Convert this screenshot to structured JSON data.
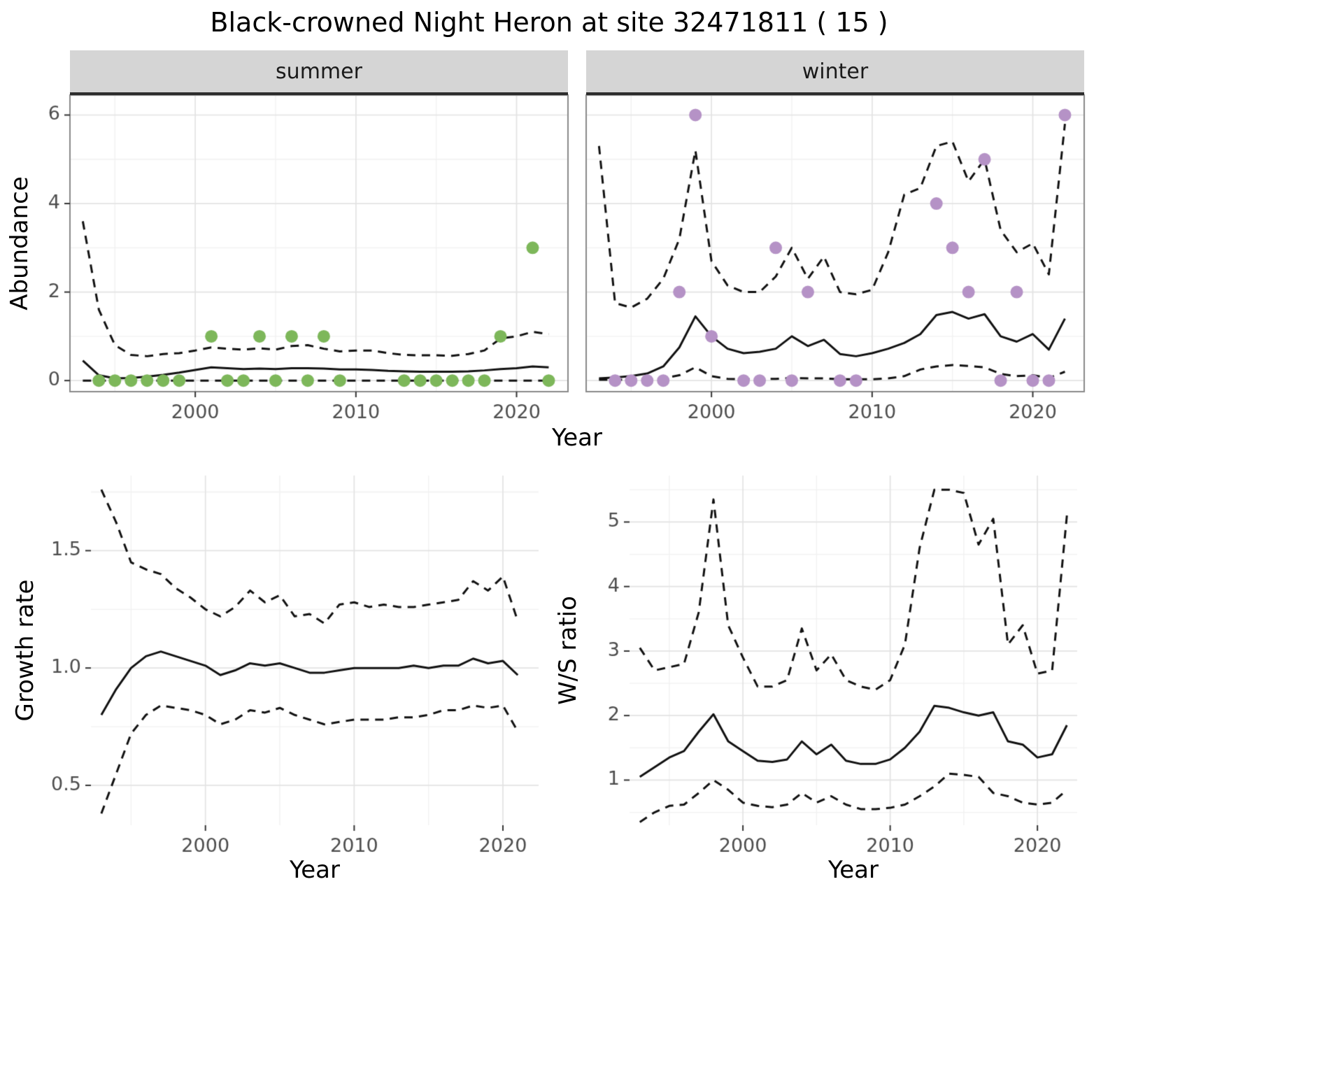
{
  "title": "Black-crowned Night Heron at site 32471811 ( 15 )",
  "colors": {
    "line": "#111111",
    "grid_major": "#e3e3e3",
    "grid_minor": "#f1f1f1",
    "strip_bg": "#d5d5d5",
    "strip_border": "#2d2d2d",
    "panel_border": "#8a8a8a",
    "tick_text": "#4d4d4d",
    "summer_point": "#7db75a",
    "winter_point": "#b592c6"
  },
  "chart_data": [
    {
      "id": "abundance-summer",
      "type": "line",
      "facet": "summer",
      "xlabel": "Year",
      "ylabel": "Abundance",
      "xlim": [
        1992.2,
        2023.2
      ],
      "ylim": [
        -0.25,
        6.45
      ],
      "xticks": {
        "values": [
          2000,
          2010,
          2020
        ],
        "labels": [
          "2000",
          "2010",
          "2020"
        ]
      },
      "yticks": {
        "values": [
          0,
          2,
          4,
          6
        ],
        "labels": [
          "0",
          "2",
          "4",
          "6"
        ]
      },
      "x": [
        1993,
        1994,
        1995,
        1996,
        1997,
        1998,
        1999,
        2000,
        2001,
        2002,
        2003,
        2004,
        2005,
        2006,
        2007,
        2008,
        2009,
        2010,
        2011,
        2012,
        2013,
        2014,
        2015,
        2016,
        2017,
        2018,
        2019,
        2020,
        2021,
        2022
      ],
      "series": [
        {
          "name": "estimate",
          "style": "solid",
          "values": [
            0.45,
            0.12,
            0.05,
            0.06,
            0.09,
            0.13,
            0.18,
            0.24,
            0.3,
            0.28,
            0.26,
            0.27,
            0.26,
            0.28,
            0.28,
            0.27,
            0.25,
            0.25,
            0.24,
            0.22,
            0.21,
            0.2,
            0.2,
            0.2,
            0.21,
            0.23,
            0.26,
            0.28,
            0.32,
            0.3
          ]
        },
        {
          "name": "upper-ci",
          "style": "dashed",
          "values": [
            3.6,
            1.6,
            0.8,
            0.58,
            0.55,
            0.6,
            0.62,
            0.68,
            0.75,
            0.72,
            0.7,
            0.73,
            0.7,
            0.78,
            0.8,
            0.72,
            0.66,
            0.68,
            0.68,
            0.62,
            0.58,
            0.57,
            0.57,
            0.56,
            0.6,
            0.68,
            0.95,
            1.0,
            1.1,
            1.05
          ]
        },
        {
          "name": "lower-ci",
          "style": "dashed",
          "values": [
            0,
            0,
            0,
            0,
            0,
            0,
            0,
            0,
            0,
            0,
            0,
            0,
            0,
            0,
            0,
            0,
            0,
            0,
            0,
            0,
            0,
            0,
            0,
            0,
            0,
            0,
            0,
            0,
            0,
            0
          ]
        }
      ],
      "points": {
        "color": "#7db75a",
        "x": [
          1994,
          1995,
          1996,
          1997,
          1998,
          1999,
          2001,
          2002,
          2003,
          2004,
          2005,
          2006,
          2007,
          2008,
          2009,
          2013,
          2014,
          2015,
          2016,
          2017,
          2018,
          2019,
          2021,
          2022
        ],
        "y": [
          0,
          0,
          0,
          0,
          0,
          0,
          1,
          0,
          0,
          1,
          0,
          1,
          0,
          1,
          0,
          0,
          0,
          0,
          0,
          0,
          0,
          1,
          3,
          0
        ]
      }
    },
    {
      "id": "abundance-winter",
      "type": "line",
      "facet": "winter",
      "xlabel": "Year",
      "ylabel": "Abundance",
      "xlim": [
        1992.2,
        2023.2
      ],
      "ylim": [
        -0.25,
        6.45
      ],
      "xticks": {
        "values": [
          2000,
          2010,
          2020
        ],
        "labels": [
          "2000",
          "2010",
          "2020"
        ]
      },
      "yticks": {
        "values": [
          0,
          2,
          4,
          6
        ],
        "labels": [
          "0",
          "2",
          "4",
          "6"
        ]
      },
      "x": [
        1993,
        1994,
        1995,
        1996,
        1997,
        1998,
        1999,
        2000,
        2001,
        2002,
        2003,
        2004,
        2005,
        2006,
        2007,
        2008,
        2009,
        2010,
        2011,
        2012,
        2013,
        2014,
        2015,
        2016,
        2017,
        2018,
        2019,
        2020,
        2021,
        2022
      ],
      "series": [
        {
          "name": "estimate",
          "style": "solid",
          "values": [
            0.05,
            0.07,
            0.1,
            0.16,
            0.32,
            0.75,
            1.45,
            1.0,
            0.72,
            0.62,
            0.65,
            0.72,
            1.0,
            0.78,
            0.92,
            0.6,
            0.55,
            0.62,
            0.72,
            0.85,
            1.05,
            1.48,
            1.55,
            1.4,
            1.5,
            1.0,
            0.88,
            1.05,
            0.7,
            1.4
          ]
        },
        {
          "name": "upper-ci",
          "style": "dashed",
          "values": [
            5.3,
            1.75,
            1.65,
            1.85,
            2.3,
            3.2,
            5.2,
            2.7,
            2.15,
            2.0,
            2.0,
            2.35,
            3.0,
            2.3,
            2.8,
            2.0,
            1.95,
            2.05,
            2.9,
            4.2,
            4.35,
            5.3,
            5.4,
            4.5,
            5.0,
            3.4,
            2.9,
            3.1,
            2.4,
            5.8
          ]
        },
        {
          "name": "lower-ci",
          "style": "dashed",
          "values": [
            0.02,
            0.02,
            0.02,
            0.03,
            0.05,
            0.12,
            0.3,
            0.1,
            0.04,
            0.03,
            0.03,
            0.04,
            0.06,
            0.05,
            0.05,
            0.03,
            0.03,
            0.03,
            0.05,
            0.1,
            0.25,
            0.32,
            0.35,
            0.33,
            0.3,
            0.15,
            0.1,
            0.12,
            0.06,
            0.2
          ]
        }
      ],
      "points": {
        "color": "#b592c6",
        "x": [
          1994,
          1995,
          1996,
          1997,
          1998,
          1999,
          2000,
          2002,
          2003,
          2004,
          2005,
          2006,
          2008,
          2009,
          2014,
          2015,
          2016,
          2017,
          2018,
          2019,
          2020,
          2021,
          2022
        ],
        "y": [
          0,
          0,
          0,
          0,
          2,
          6,
          1,
          0,
          0,
          3,
          0,
          2,
          0,
          0,
          4,
          3,
          2,
          5,
          0,
          2,
          0,
          0,
          6
        ]
      }
    },
    {
      "id": "growth-rate",
      "type": "line",
      "xlabel": "Year",
      "ylabel": "Growth rate",
      "xlim": [
        1992.3,
        2022.4
      ],
      "ylim": [
        0.33,
        1.82
      ],
      "xticks": {
        "values": [
          2000,
          2010,
          2020
        ],
        "labels": [
          "2000",
          "2010",
          "2020"
        ]
      },
      "yticks": {
        "values": [
          0.5,
          1.0,
          1.5
        ],
        "labels": [
          "0.5",
          "1.0",
          "1.5"
        ]
      },
      "x": [
        1993,
        1994,
        1995,
        1996,
        1997,
        1998,
        1999,
        2000,
        2001,
        2002,
        2003,
        2004,
        2005,
        2006,
        2007,
        2008,
        2009,
        2010,
        2011,
        2012,
        2013,
        2014,
        2015,
        2016,
        2017,
        2018,
        2019,
        2020,
        2021
      ],
      "series": [
        {
          "name": "estimate",
          "style": "solid",
          "values": [
            0.8,
            0.91,
            1.0,
            1.05,
            1.07,
            1.05,
            1.03,
            1.01,
            0.97,
            0.99,
            1.02,
            1.01,
            1.02,
            1.0,
            0.98,
            0.98,
            0.99,
            1.0,
            1.0,
            1.0,
            1.0,
            1.01,
            1.0,
            1.01,
            1.01,
            1.04,
            1.02,
            1.03,
            0.97
          ]
        },
        {
          "name": "upper-ci",
          "style": "dashed",
          "values": [
            1.76,
            1.62,
            1.45,
            1.42,
            1.4,
            1.34,
            1.3,
            1.25,
            1.22,
            1.26,
            1.33,
            1.28,
            1.31,
            1.22,
            1.23,
            1.19,
            1.27,
            1.28,
            1.26,
            1.27,
            1.26,
            1.26,
            1.27,
            1.28,
            1.29,
            1.37,
            1.33,
            1.39,
            1.2
          ]
        },
        {
          "name": "lower-ci",
          "style": "dashed",
          "values": [
            0.38,
            0.55,
            0.72,
            0.8,
            0.84,
            0.83,
            0.82,
            0.8,
            0.76,
            0.78,
            0.82,
            0.81,
            0.83,
            0.8,
            0.78,
            0.76,
            0.77,
            0.78,
            0.78,
            0.78,
            0.79,
            0.79,
            0.8,
            0.82,
            0.82,
            0.84,
            0.83,
            0.84,
            0.73
          ]
        }
      ]
    },
    {
      "id": "ws-ratio",
      "type": "line",
      "xlabel": "Year",
      "ylabel": "W/S ratio",
      "xlim": [
        1992.3,
        2022.7
      ],
      "ylim": [
        0.3,
        5.72
      ],
      "xticks": {
        "values": [
          2000,
          2010,
          2020
        ],
        "labels": [
          "2000",
          "2010",
          "2020"
        ]
      },
      "yticks": {
        "values": [
          1,
          2,
          3,
          4,
          5
        ],
        "labels": [
          "1",
          "2",
          "3",
          "4",
          "5"
        ]
      },
      "x": [
        1993,
        1994,
        1995,
        1996,
        1997,
        1998,
        1999,
        2000,
        2001,
        2002,
        2003,
        2004,
        2005,
        2006,
        2007,
        2008,
        2009,
        2010,
        2011,
        2012,
        2013,
        2014,
        2015,
        2016,
        2017,
        2018,
        2019,
        2020,
        2021,
        2022
      ],
      "series": [
        {
          "name": "estimate",
          "style": "solid",
          "values": [
            1.05,
            1.2,
            1.35,
            1.45,
            1.75,
            2.02,
            1.6,
            1.45,
            1.3,
            1.28,
            1.32,
            1.6,
            1.4,
            1.55,
            1.3,
            1.25,
            1.25,
            1.32,
            1.5,
            1.75,
            2.15,
            2.12,
            2.05,
            2.0,
            2.05,
            1.6,
            1.55,
            1.35,
            1.4,
            1.85
          ]
        },
        {
          "name": "upper-ci",
          "style": "dashed",
          "values": [
            3.05,
            2.7,
            2.75,
            2.8,
            3.6,
            5.35,
            3.4,
            2.9,
            2.45,
            2.45,
            2.55,
            3.35,
            2.7,
            2.95,
            2.55,
            2.45,
            2.4,
            2.55,
            3.1,
            4.6,
            5.5,
            5.5,
            5.45,
            4.65,
            5.05,
            3.1,
            3.4,
            2.65,
            2.7,
            5.1
          ]
        },
        {
          "name": "lower-ci",
          "style": "dashed",
          "values": [
            0.35,
            0.5,
            0.6,
            0.62,
            0.8,
            1.0,
            0.85,
            0.65,
            0.6,
            0.58,
            0.62,
            0.8,
            0.65,
            0.75,
            0.62,
            0.55,
            0.55,
            0.57,
            0.62,
            0.75,
            0.9,
            1.1,
            1.08,
            1.05,
            0.8,
            0.75,
            0.65,
            0.62,
            0.65,
            0.85
          ]
        }
      ]
    }
  ]
}
